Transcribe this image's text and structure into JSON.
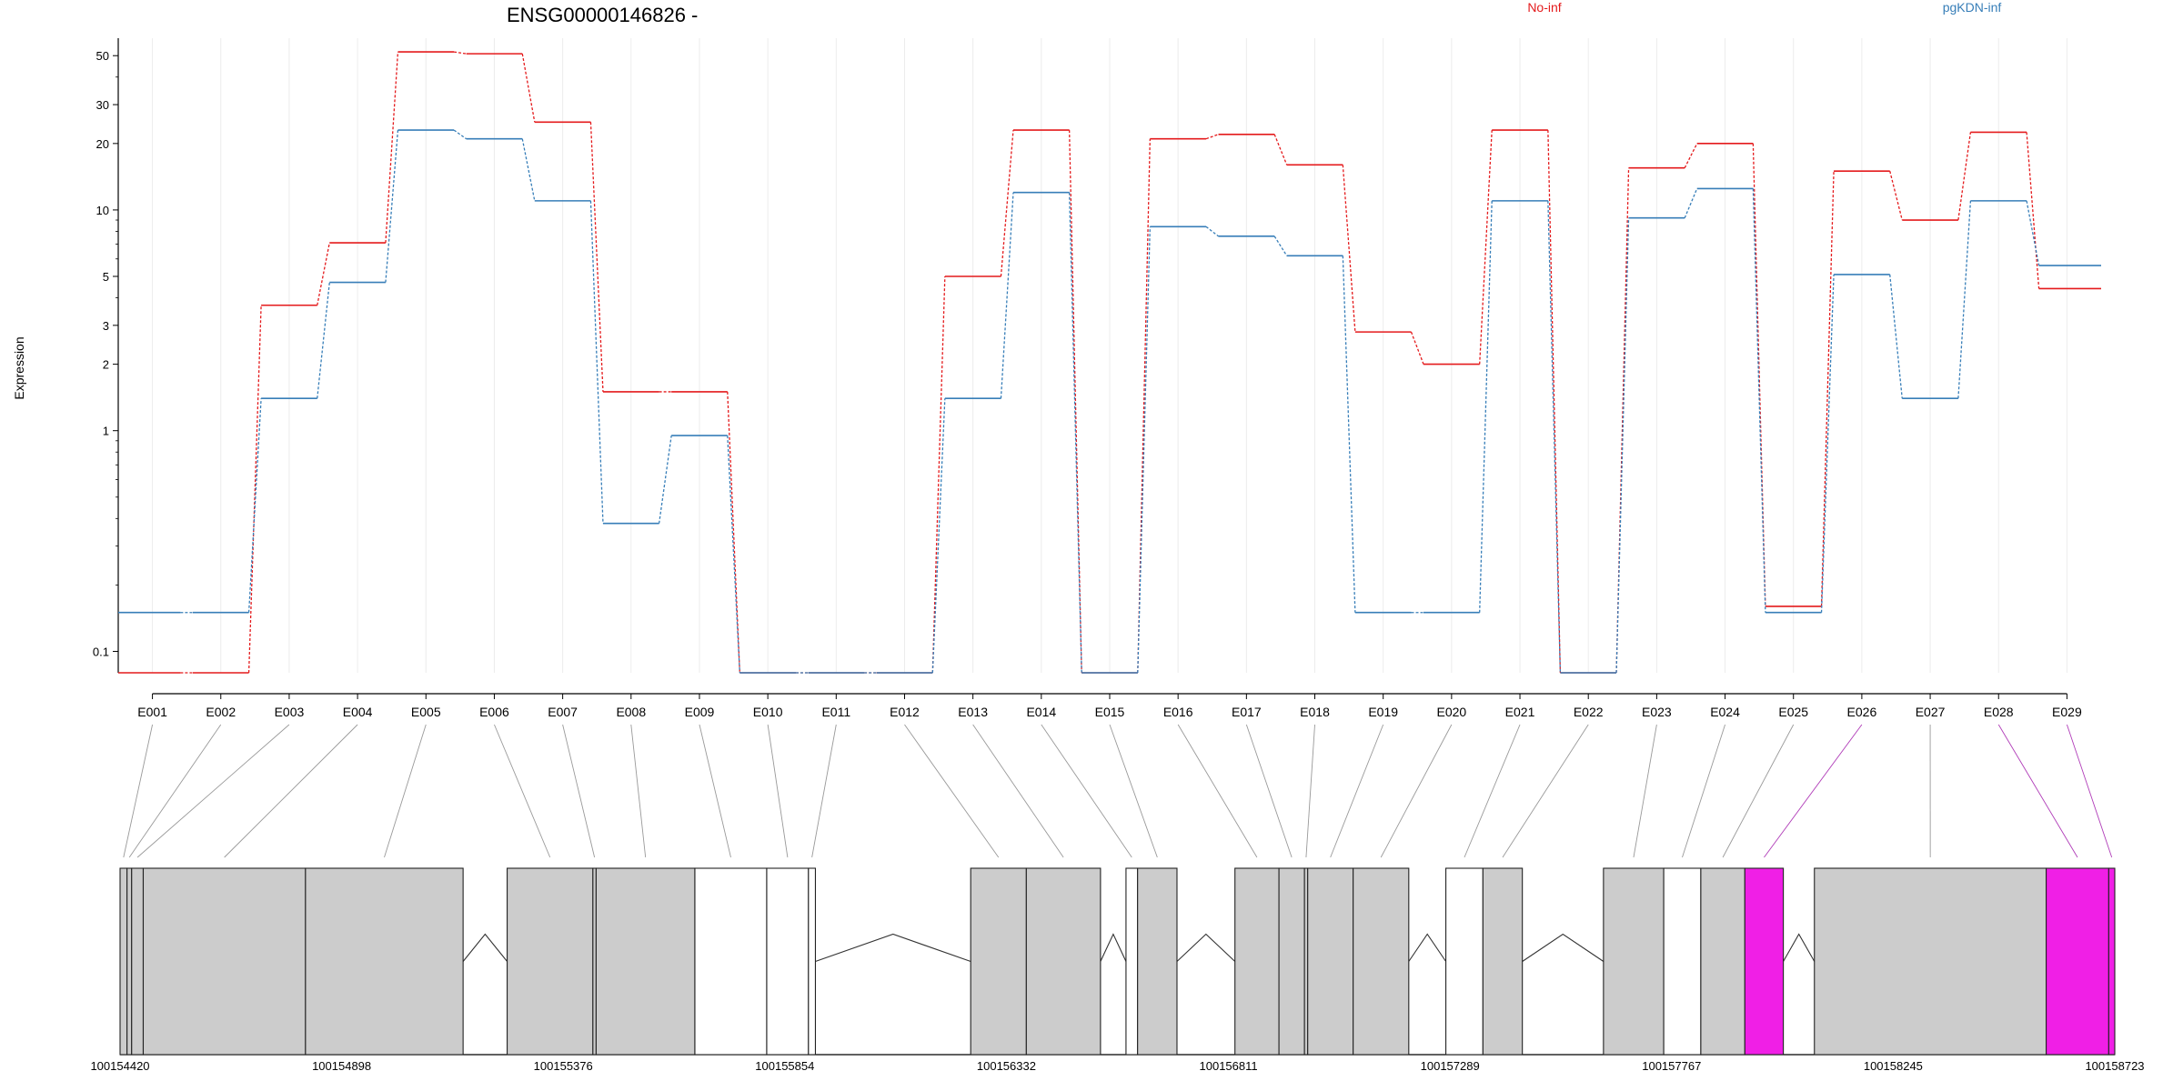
{
  "chart_data": {
    "type": "line",
    "title": "ENSG00000146826 -",
    "ylabel": "Expression",
    "yscale": "log",
    "ylim": [
      0.08,
      60
    ],
    "yticks": [
      0.1,
      1,
      2,
      3,
      5,
      10,
      20,
      30,
      50
    ],
    "legend_placement": "top-right",
    "categories": [
      "E001",
      "E002",
      "E003",
      "E004",
      "E005",
      "E006",
      "E007",
      "E008",
      "E009",
      "E010",
      "E011",
      "E012",
      "E013",
      "E014",
      "E015",
      "E016",
      "E017",
      "E018",
      "E019",
      "E020",
      "E021",
      "E022",
      "E023",
      "E024",
      "E025",
      "E026",
      "E027",
      "E028",
      "E029"
    ],
    "series": [
      {
        "name": "No-inf",
        "color": "#e41a1c",
        "values": [
          0.08,
          0.08,
          3.7,
          7.1,
          52,
          51,
          25,
          1.5,
          1.5,
          0.08,
          0.08,
          0.08,
          5.0,
          23,
          0.08,
          21,
          22,
          16,
          2.8,
          2.0,
          23,
          0.08,
          15.5,
          20,
          0.16,
          15,
          9,
          22.5,
          4.4
        ]
      },
      {
        "name": "pgKDN-inf",
        "color": "#377eb8",
        "values": [
          0.15,
          0.15,
          1.4,
          4.7,
          23,
          21,
          11,
          0.38,
          0.95,
          0.08,
          0.08,
          0.08,
          1.4,
          12,
          0.08,
          8.4,
          7.6,
          6.2,
          0.15,
          0.15,
          11,
          0.08,
          9.2,
          12.5,
          0.15,
          5.1,
          1.4,
          11,
          5.6
        ]
      }
    ],
    "gene_model": {
      "coordinates": [
        "100154420",
        "100154898",
        "100155376",
        "100155854",
        "100156332",
        "100156811",
        "100157289",
        "100157767",
        "100158245",
        "100158723"
      ],
      "highlight_color": "#f01fe6",
      "exon_color": "#cccccc",
      "exons": [
        {
          "start": 100154420,
          "end": 100154435,
          "fill": "grey"
        },
        {
          "start": 100154435,
          "end": 100154445,
          "fill": "grey"
        },
        {
          "start": 100154445,
          "end": 100154470,
          "fill": "grey"
        },
        {
          "start": 100154470,
          "end": 100154820,
          "fill": "grey"
        },
        {
          "start": 100154820,
          "end": 100155160,
          "fill": "grey"
        },
        {
          "start": 100155255,
          "end": 100155440,
          "fill": "grey"
        },
        {
          "start": 100155440,
          "end": 100155447,
          "fill": "grey"
        },
        {
          "start": 100155447,
          "end": 100155660,
          "fill": "grey"
        },
        {
          "start": 100155660,
          "end": 100155815,
          "fill": "white"
        },
        {
          "start": 100155815,
          "end": 100155905,
          "fill": "white"
        },
        {
          "start": 100155905,
          "end": 100155920,
          "fill": "white"
        },
        {
          "start": 100156255,
          "end": 100156375,
          "fill": "grey"
        },
        {
          "start": 100156375,
          "end": 100156535,
          "fill": "grey"
        },
        {
          "start": 100156590,
          "end": 100156615,
          "fill": "white"
        },
        {
          "start": 100156615,
          "end": 100156700,
          "fill": "grey"
        },
        {
          "start": 100156825,
          "end": 100156920,
          "fill": "grey"
        },
        {
          "start": 100156920,
          "end": 100156975,
          "fill": "grey"
        },
        {
          "start": 100156975,
          "end": 100156982,
          "fill": "grey"
        },
        {
          "start": 100156982,
          "end": 100157080,
          "fill": "grey"
        },
        {
          "start": 100157080,
          "end": 100157200,
          "fill": "grey"
        },
        {
          "start": 100157280,
          "end": 100157360,
          "fill": "white"
        },
        {
          "start": 100157360,
          "end": 100157445,
          "fill": "grey"
        },
        {
          "start": 100157620,
          "end": 100157750,
          "fill": "grey"
        },
        {
          "start": 100157750,
          "end": 100157830,
          "fill": "white"
        },
        {
          "start": 100157830,
          "end": 100157925,
          "fill": "grey"
        },
        {
          "start": 100157925,
          "end": 100158008,
          "fill": "magenta"
        },
        {
          "start": 100158075,
          "end": 100158575,
          "fill": "grey"
        },
        {
          "start": 100158575,
          "end": 100158710,
          "fill": "magenta"
        },
        {
          "start": 100158710,
          "end": 100158723,
          "fill": "magenta"
        }
      ]
    }
  }
}
